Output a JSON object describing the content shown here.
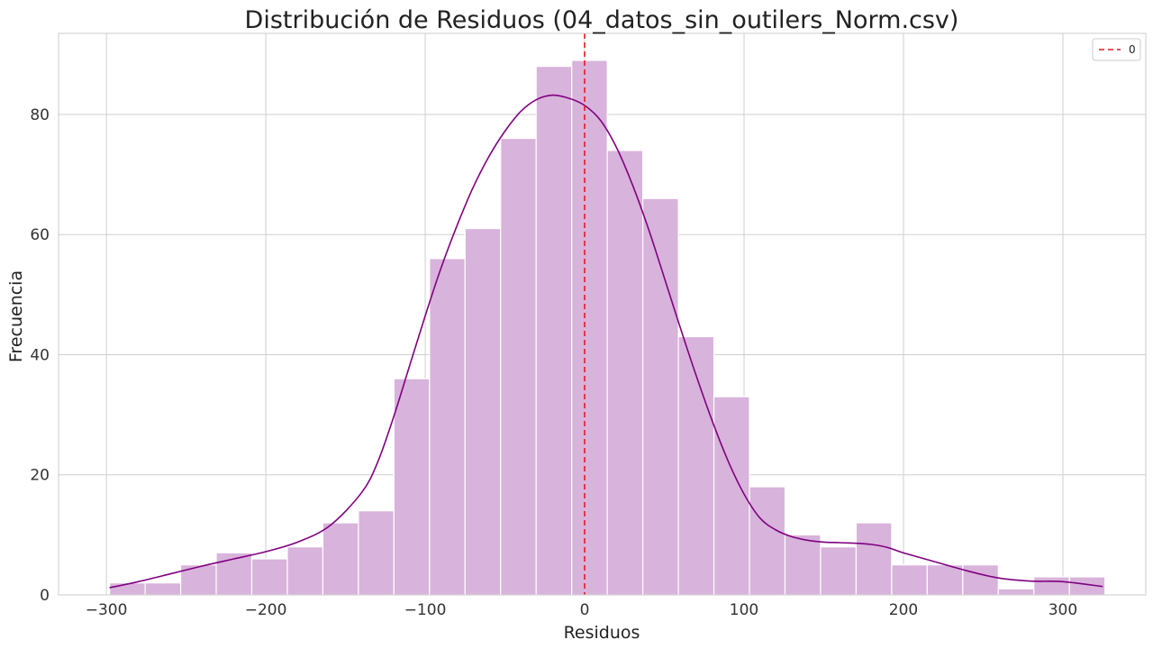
{
  "chart_data": {
    "type": "histogram",
    "title": "Distribución de Residuos (04_datos_sin_outilers_Norm.csv)",
    "xlabel": "Residuos",
    "ylabel": "Frecuencia",
    "xlim": [
      -330,
      352
    ],
    "ylim": [
      0,
      93.5
    ],
    "xticks": [
      -300,
      -200,
      -100,
      0,
      100,
      200,
      300
    ],
    "xtick_labels": [
      "−300",
      "−200",
      "−100",
      "0",
      "100",
      "200",
      "300"
    ],
    "yticks": [
      0,
      20,
      40,
      60,
      80
    ],
    "ytick_labels": [
      "0",
      "20",
      "40",
      "60",
      "80"
    ],
    "grid": true,
    "bin_start": -298,
    "bin_width": 22.3,
    "counts": [
      2,
      2,
      5,
      7,
      6,
      8,
      12,
      14,
      36,
      56,
      61,
      76,
      88,
      89,
      74,
      66,
      43,
      33,
      18,
      10,
      8,
      12,
      5,
      5,
      5,
      1,
      3,
      3
    ],
    "kde": {
      "x": [
        -298,
        -280,
        -260,
        -240,
        -220,
        -200,
        -180,
        -160,
        -140,
        -130,
        -120,
        -110,
        -100,
        -90,
        -80,
        -70,
        -60,
        -50,
        -40,
        -30,
        -20,
        -10,
        0,
        10,
        20,
        30,
        40,
        50,
        60,
        70,
        80,
        90,
        100,
        110,
        120,
        130,
        140,
        150,
        160,
        170,
        180,
        190,
        200,
        220,
        240,
        260,
        280,
        300,
        325
      ],
      "y": [
        1.2,
        2.2,
        3.5,
        4.8,
        6.0,
        7.2,
        8.8,
        11.5,
        17.0,
        22.0,
        29.5,
        38.0,
        46.5,
        54.5,
        61.5,
        67.8,
        73.0,
        77.2,
        80.5,
        82.5,
        83.2,
        82.7,
        81.5,
        79.0,
        74.5,
        68.3,
        61.0,
        52.8,
        44.5,
        36.5,
        29.0,
        22.3,
        16.8,
        12.8,
        10.8,
        9.7,
        9.1,
        8.8,
        8.7,
        8.6,
        8.4,
        7.9,
        7.0,
        5.5,
        4.0,
        2.8,
        2.3,
        2.2,
        1.4
      ]
    },
    "vline": {
      "x": 0,
      "color": "#e31a1c",
      "style": "dashed",
      "label": "0"
    },
    "legend": {
      "placement": "top-right",
      "entries": [
        "0"
      ]
    },
    "colors": {
      "bar_fill": "#d8b3db",
      "bar_edge": "#ffffff",
      "kde": "#800080",
      "vline": "#e31a1c",
      "grid": "#cfcfcf",
      "frame": "#cccccc"
    }
  }
}
